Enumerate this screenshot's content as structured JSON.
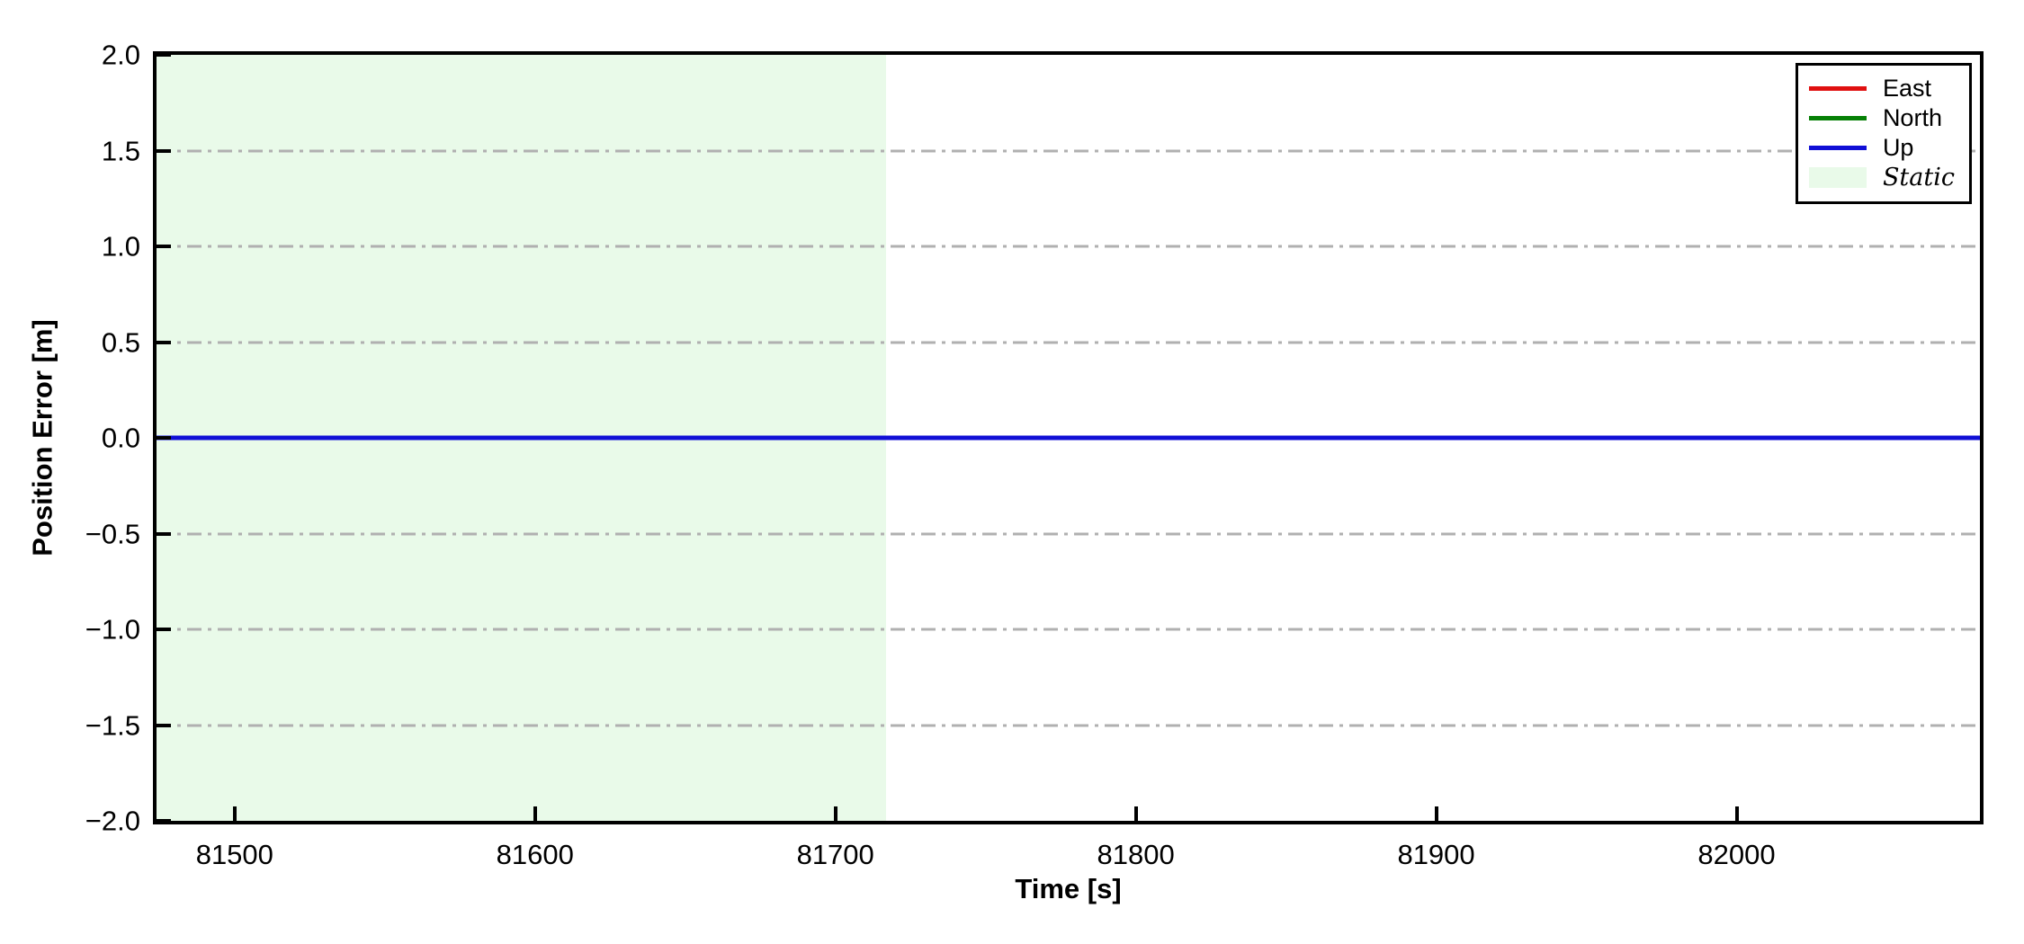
{
  "figure": {
    "background": "#ffffff"
  },
  "chart_data": {
    "type": "line",
    "xlabel": "Time [s]",
    "ylabel": "Position Error [m]",
    "xlim": [
      81474,
      82081
    ],
    "ylim": [
      -2.0,
      2.0
    ],
    "x_ticks": [
      81500,
      81600,
      81700,
      81800,
      81900,
      82000
    ],
    "x_tick_labels": [
      "81500",
      "81600",
      "81700",
      "81800",
      "81900",
      "82000"
    ],
    "y_ticks": [
      2.0,
      1.5,
      1.0,
      0.5,
      0.0,
      -0.5,
      -1.0,
      -1.5,
      -2.0
    ],
    "y_tick_labels": [
      "2.0",
      "1.5",
      "1.0",
      "0.5",
      "0.0",
      "−0.5",
      "−1.0",
      "−1.5",
      "−2.0"
    ],
    "grid": {
      "visible": true,
      "style": "dash-dot",
      "color": "#b0b0b0",
      "values": [
        1.5,
        1.0,
        0.5,
        0.0,
        -0.5,
        -1.0,
        -1.5
      ]
    },
    "series": [
      {
        "name": "East",
        "color": "#e01010",
        "x": [
          81474,
          82081
        ],
        "y": [
          0,
          0
        ],
        "linewidth": 5
      },
      {
        "name": "North",
        "color": "#068006",
        "x": [
          81474,
          82081
        ],
        "y": [
          0,
          0
        ],
        "linewidth": 5
      },
      {
        "name": "Up",
        "color": "#100fd6",
        "x": [
          81474,
          82081
        ],
        "y": [
          0,
          0
        ],
        "linewidth": 5
      }
    ],
    "regions": [
      {
        "name": "Static",
        "xstart": 81474,
        "xend": 81717,
        "color": "#e9fae9"
      }
    ],
    "legend": {
      "position": "upper right",
      "entries": [
        {
          "label": "East",
          "swatch": "line",
          "color": "#e01010",
          "italic": false
        },
        {
          "label": "North",
          "swatch": "line",
          "color": "#068006",
          "italic": false
        },
        {
          "label": "Up",
          "swatch": "line",
          "color": "#100fd6",
          "italic": false
        },
        {
          "label": "Static",
          "swatch": "patch",
          "color": "#e9fae9",
          "italic": true
        }
      ]
    }
  }
}
